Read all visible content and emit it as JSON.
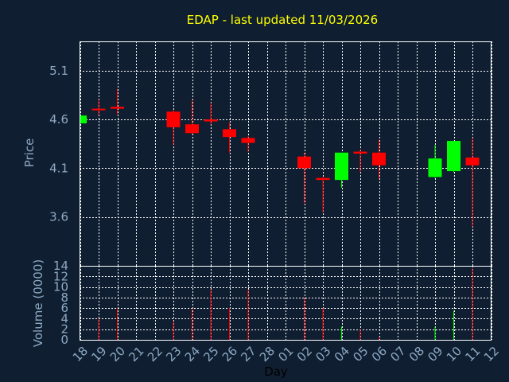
{
  "chart_data": {
    "type": "candlestick",
    "title": "EDAP - last updated 11/03/2026",
    "xlabel": "Day",
    "price_axis": {
      "ylabel": "Price",
      "ylim": [
        3.1,
        5.4
      ],
      "ticks": [
        "3.6",
        "4.1",
        "4.6",
        "5.1"
      ],
      "tick_values": [
        3.6,
        4.1,
        4.6,
        5.1
      ]
    },
    "volume_axis": {
      "ylabel": "Volume (0000)",
      "ylim": [
        0,
        14
      ],
      "ticks": [
        "0",
        "2",
        "4",
        "6",
        "8",
        "10",
        "12",
        "14"
      ],
      "tick_values": [
        0,
        2,
        4,
        6,
        8,
        10,
        12,
        14
      ]
    },
    "x_ticks": [
      "18",
      "19",
      "20",
      "21",
      "22",
      "23",
      "24",
      "25",
      "26",
      "27",
      "28",
      "01",
      "02",
      "03",
      "04",
      "05",
      "06",
      "07",
      "08",
      "09",
      "10",
      "11",
      "12"
    ],
    "grid": true,
    "colors": {
      "background": "#0f1e30",
      "title": "#ffff00",
      "axis_text": "#8da9c4",
      "up": "#00ff00",
      "down": "#ff0000",
      "frame": "#ffffff"
    },
    "candles": [
      {
        "day": "18",
        "open": 4.56,
        "high": 4.64,
        "low": 4.55,
        "close": 4.64,
        "volume": 0.0
      },
      {
        "day": "19",
        "open": 4.71,
        "high": 4.8,
        "low": 4.65,
        "close": 4.7,
        "volume": 4.0
      },
      {
        "day": "20",
        "open": 4.73,
        "high": 4.91,
        "low": 4.65,
        "close": 4.71,
        "volume": 6.0
      },
      {
        "day": "23",
        "open": 4.68,
        "high": 4.7,
        "low": 4.34,
        "close": 4.52,
        "volume": 3.5
      },
      {
        "day": "24",
        "open": 4.55,
        "high": 4.8,
        "low": 4.45,
        "close": 4.46,
        "volume": 6.0
      },
      {
        "day": "25",
        "open": 4.6,
        "high": 4.77,
        "low": 4.55,
        "close": 4.58,
        "volume": 9.5
      },
      {
        "day": "26",
        "open": 4.5,
        "high": 4.57,
        "low": 4.26,
        "close": 4.42,
        "volume": 6.0
      },
      {
        "day": "27",
        "open": 4.41,
        "high": 4.43,
        "low": 4.27,
        "close": 4.36,
        "volume": 9.5
      },
      {
        "day": "02",
        "open": 4.22,
        "high": 4.26,
        "low": 3.74,
        "close": 4.1,
        "volume": 8.0
      },
      {
        "day": "03",
        "open": 4.0,
        "high": 4.01,
        "low": 3.65,
        "close": 3.98,
        "volume": 6.0
      },
      {
        "day": "04",
        "open": 3.98,
        "high": 4.26,
        "low": 3.9,
        "close": 4.26,
        "volume": 2.5
      },
      {
        "day": "05",
        "open": 4.27,
        "high": 4.29,
        "low": 4.06,
        "close": 4.25,
        "volume": 2.0
      },
      {
        "day": "06",
        "open": 4.26,
        "high": 4.39,
        "low": 3.99,
        "close": 4.13,
        "volume": 0.5
      },
      {
        "day": "09",
        "open": 4.01,
        "high": 4.34,
        "low": 4.0,
        "close": 4.2,
        "volume": 2.5
      },
      {
        "day": "10",
        "open": 4.07,
        "high": 4.38,
        "low": 4.06,
        "close": 4.38,
        "volume": 5.5
      },
      {
        "day": "11",
        "open": 4.21,
        "high": 4.41,
        "low": 3.5,
        "close": 4.13,
        "volume": 13.5
      }
    ]
  }
}
